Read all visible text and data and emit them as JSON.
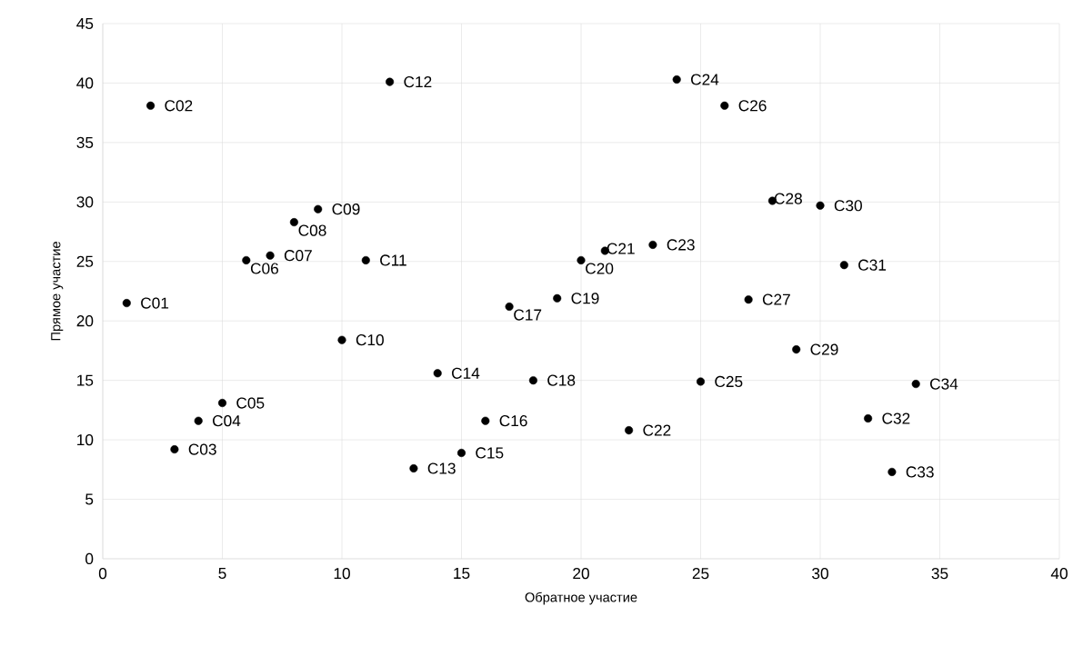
{
  "chart_data": {
    "type": "scatter",
    "xlabel": "Обратное участие",
    "ylabel": "Прямое участие",
    "x": [
      1,
      2,
      3,
      4,
      5,
      6,
      7,
      8,
      9,
      10,
      11,
      12,
      13,
      14,
      15,
      16,
      17,
      18,
      19,
      20,
      21,
      22,
      23,
      24,
      25,
      26,
      27,
      28,
      29,
      30,
      31,
      32,
      33,
      34
    ],
    "values": [
      21.5,
      38.1,
      9.2,
      11.6,
      13.1,
      25.1,
      25.5,
      28.3,
      29.4,
      18.4,
      25.1,
      40.1,
      7.6,
      15.6,
      8.9,
      11.6,
      21.2,
      15.0,
      21.9,
      25.1,
      25.9,
      10.8,
      26.4,
      40.3,
      14.9,
      38.1,
      21.8,
      30.1,
      17.6,
      29.7,
      24.7,
      11.8,
      7.3,
      14.7
    ],
    "color": "#000000",
    "marker": "circle",
    "grid": true,
    "xlim": [
      0,
      40
    ],
    "xticks": [
      0,
      5,
      10,
      15,
      20,
      25,
      30,
      35,
      40
    ],
    "ylim": [
      0,
      45
    ],
    "yticks": [
      0,
      5,
      10,
      15,
      20,
      25,
      30,
      35,
      40,
      45
    ],
    "annotations": [
      {
        "text": "C01",
        "x": 1,
        "y": 21.5
      },
      {
        "text": "C02",
        "x": 2,
        "y": 38.1
      },
      {
        "text": "C03",
        "x": 3,
        "y": 9.2
      },
      {
        "text": "C04",
        "x": 4,
        "y": 11.6
      },
      {
        "text": "C05",
        "x": 5,
        "y": 13.1
      },
      {
        "text": "C06",
        "x": 6,
        "y": 25.1
      },
      {
        "text": "C07",
        "x": 7,
        "y": 25.5
      },
      {
        "text": "C08",
        "x": 8,
        "y": 28.3
      },
      {
        "text": "C09",
        "x": 9,
        "y": 29.4
      },
      {
        "text": "C10",
        "x": 10,
        "y": 18.4
      },
      {
        "text": "C11",
        "x": 11,
        "y": 25.1
      },
      {
        "text": "C12",
        "x": 12,
        "y": 40.1
      },
      {
        "text": "C13",
        "x": 13,
        "y": 7.6
      },
      {
        "text": "C14",
        "x": 14,
        "y": 15.6
      },
      {
        "text": "C15",
        "x": 15,
        "y": 8.9
      },
      {
        "text": "C16",
        "x": 16,
        "y": 11.6
      },
      {
        "text": "C17",
        "x": 17,
        "y": 21.2
      },
      {
        "text": "C18",
        "x": 18,
        "y": 15.0
      },
      {
        "text": "C19",
        "x": 19,
        "y": 21.9
      },
      {
        "text": "C20",
        "x": 20,
        "y": 25.1
      },
      {
        "text": "C21",
        "x": 21,
        "y": 25.9
      },
      {
        "text": "C22",
        "x": 22,
        "y": 10.8
      },
      {
        "text": "C23",
        "x": 23,
        "y": 26.4
      },
      {
        "text": "C24",
        "x": 24,
        "y": 40.3
      },
      {
        "text": "C25",
        "x": 25,
        "y": 14.9
      },
      {
        "text": "C26",
        "x": 26,
        "y": 38.1
      },
      {
        "text": "C27",
        "x": 27,
        "y": 21.8
      },
      {
        "text": "C28",
        "x": 28,
        "y": 30.1
      },
      {
        "text": "C29",
        "x": 29,
        "y": 17.6
      },
      {
        "text": "C30",
        "x": 30,
        "y": 29.7
      },
      {
        "text": "C31",
        "x": 31,
        "y": 24.7
      },
      {
        "text": "C32",
        "x": 32,
        "y": 11.8
      },
      {
        "text": "C33",
        "x": 33,
        "y": 7.3
      },
      {
        "text": "C34",
        "x": 34,
        "y": 14.7
      }
    ]
  }
}
